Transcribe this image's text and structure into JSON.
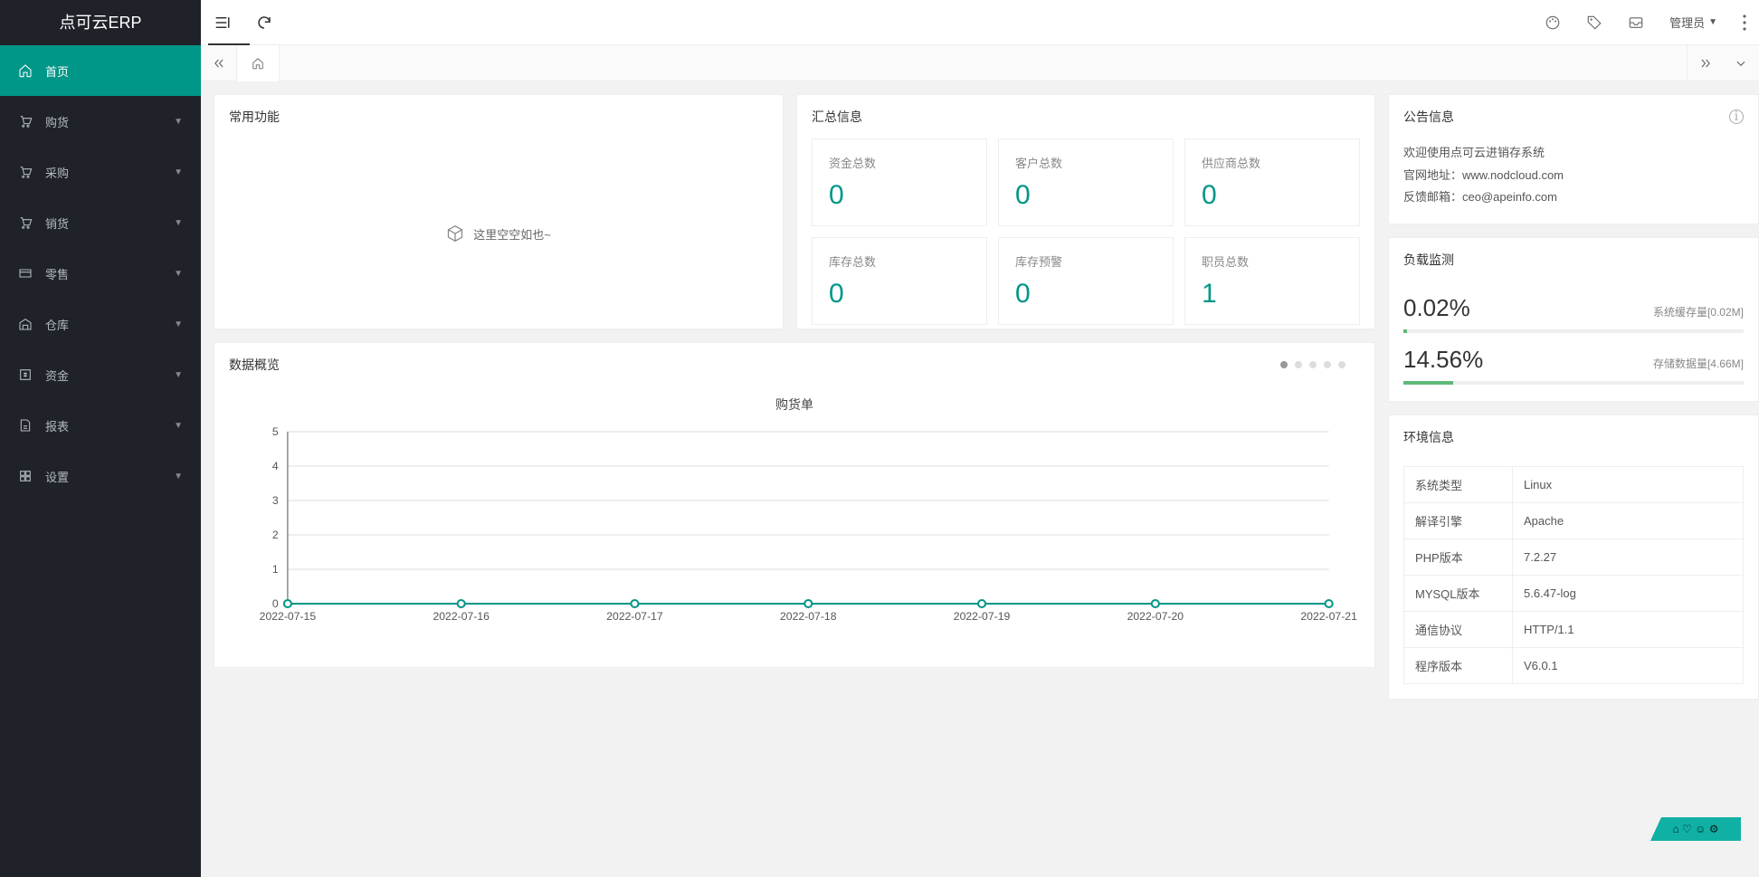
{
  "app": {
    "title": "点可云ERP"
  },
  "header": {
    "user_label": "管理员"
  },
  "sidebar": {
    "items": [
      {
        "label": "首页",
        "icon": "home",
        "active": true
      },
      {
        "label": "购货",
        "icon": "cart",
        "active": false
      },
      {
        "label": "采购",
        "icon": "cart",
        "active": false
      },
      {
        "label": "销货",
        "icon": "cart",
        "active": false
      },
      {
        "label": "零售",
        "icon": "card",
        "active": false
      },
      {
        "label": "仓库",
        "icon": "warehouse",
        "active": false
      },
      {
        "label": "资金",
        "icon": "money",
        "active": false
      },
      {
        "label": "报表",
        "icon": "report",
        "active": false
      },
      {
        "label": "设置",
        "icon": "grid",
        "active": false
      }
    ]
  },
  "cards": {
    "common": {
      "title": "常用功能",
      "empty_text": "这里空空如也~"
    },
    "summary": {
      "title": "汇总信息",
      "stats": [
        {
          "label": "资金总数",
          "value": "0"
        },
        {
          "label": "客户总数",
          "value": "0"
        },
        {
          "label": "供应商总数",
          "value": "0"
        },
        {
          "label": "库存总数",
          "value": "0"
        },
        {
          "label": "库存预警",
          "value": "0"
        },
        {
          "label": "职员总数",
          "value": "1"
        }
      ]
    },
    "notice": {
      "title": "公告信息",
      "lines": [
        "欢迎使用点可云进销存系统",
        "官网地址：www.nodcloud.com",
        "反馈邮箱：ceo@apeinfo.com"
      ]
    },
    "load": {
      "title": "负载监测",
      "rows": [
        {
          "pct": "0.02%",
          "pct_num": 0.02,
          "label": "系统缓存量[0.02M]"
        },
        {
          "pct": "14.56%",
          "pct_num": 14.56,
          "label": "存储数据量[4.66M]"
        }
      ]
    },
    "env": {
      "title": "环境信息",
      "rows": [
        {
          "k": "系统类型",
          "v": "Linux"
        },
        {
          "k": "解译引擎",
          "v": "Apache"
        },
        {
          "k": "PHP版本",
          "v": "7.2.27"
        },
        {
          "k": "MYSQL版本",
          "v": "5.6.47-log"
        },
        {
          "k": "通信协议",
          "v": "HTTP/1.1"
        },
        {
          "k": "程序版本",
          "v": "V6.0.1"
        }
      ]
    },
    "chart": {
      "title": "数据概览",
      "heading": "购货单",
      "pager_count": 5,
      "pager_active": 0,
      "series_color": "#009688",
      "grid_color": "#dddddd",
      "axis_color": "#555555",
      "y": {
        "min": 0,
        "max": 5,
        "step": 1
      },
      "x_labels": [
        "2022-07-15",
        "2022-07-16",
        "2022-07-17",
        "2022-07-18",
        "2022-07-19",
        "2022-07-20",
        "2022-07-21"
      ],
      "values": [
        0,
        0,
        0,
        0,
        0,
        0,
        0
      ]
    }
  },
  "colors": {
    "accent": "#009688",
    "sidebar_bg": "#20222a",
    "progress": "#5fb878"
  }
}
